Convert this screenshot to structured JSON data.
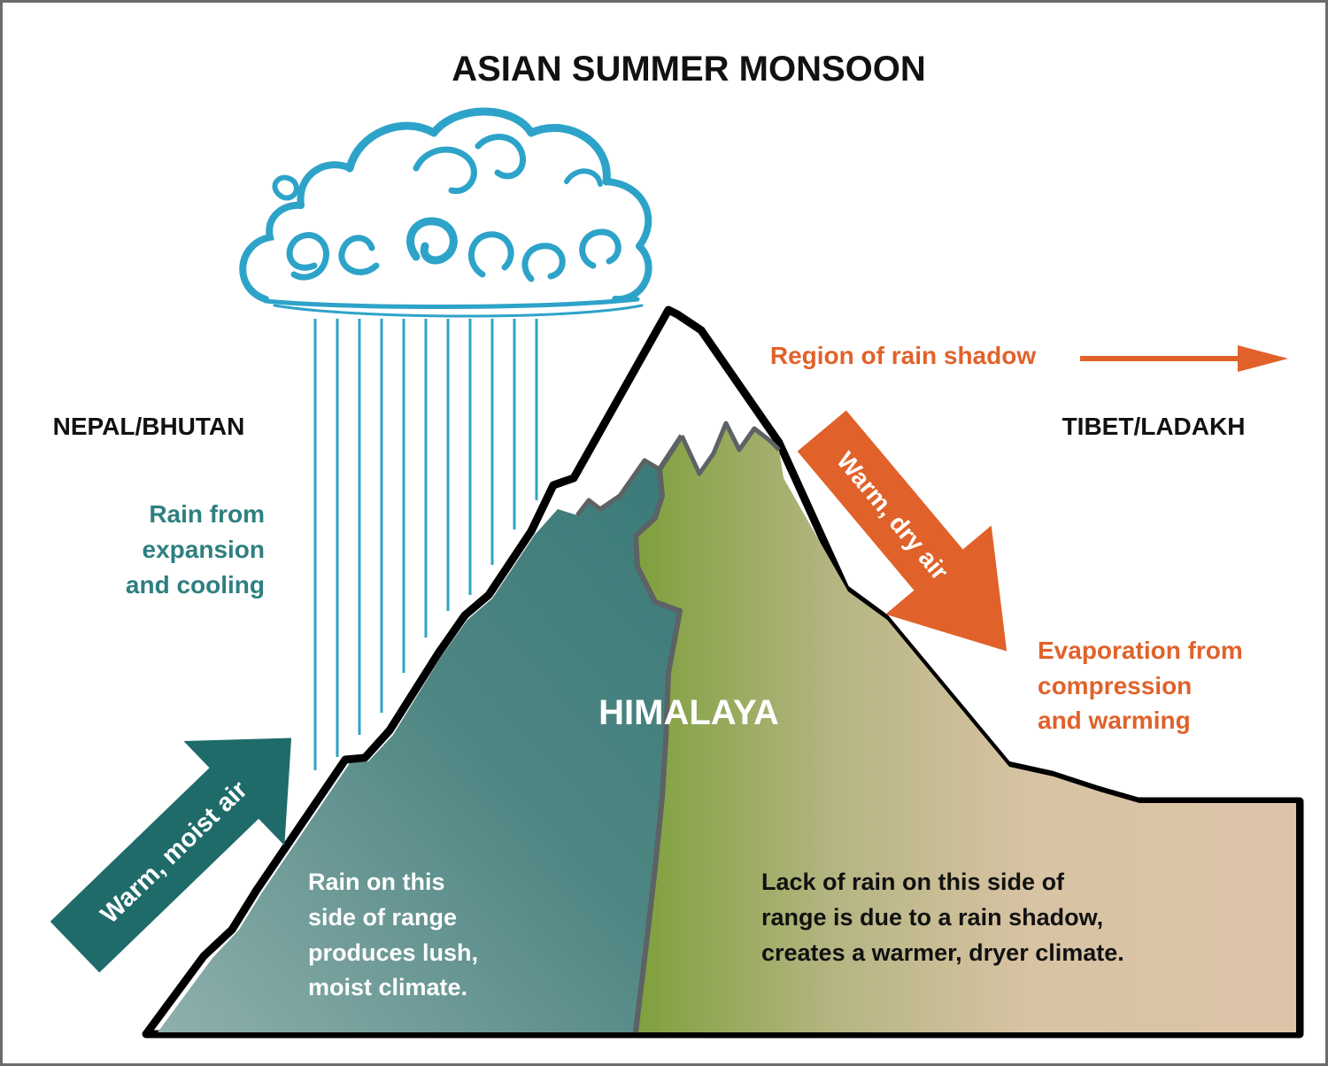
{
  "title": "ASIAN SUMMER MONSOON",
  "regions": {
    "left": "NEPAL/BHUTAN",
    "right": "TIBET/LADAKH"
  },
  "mountain": {
    "name": "HIMALAYA"
  },
  "windward": {
    "rain_label": [
      "Rain from",
      "expansion",
      "and cooling"
    ],
    "arrow_label": "Warm, moist air",
    "side_description": [
      "Rain on this",
      "side of range",
      "produces lush,",
      "moist climate."
    ]
  },
  "leeward": {
    "shadow_label": "Region of rain shadow",
    "arrow_label": "Warm, dry air",
    "evaporation_label": [
      "Evaporation from",
      "compression",
      "and warming"
    ],
    "side_description": [
      "Lack of rain on this side of",
      "range is due to a rain shadow,",
      "creates a warmer, dryer climate."
    ]
  },
  "colors": {
    "teal_text": "#2e7f80",
    "dark_teal_arrow": "#1f6b6a",
    "orange": "#e0622a",
    "cloud_blue": "#2ea3c9",
    "green": "#7ea03c",
    "tan": "#dcc4a8"
  },
  "icons": {
    "cloud": "rain-cloud-icon",
    "arrow_right": "arrow-right-icon"
  }
}
